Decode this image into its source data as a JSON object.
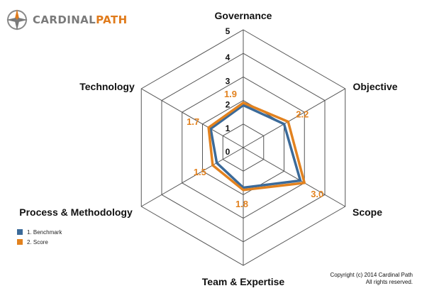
{
  "brand": {
    "name_part1": "CARDINAL",
    "name_part2": "PATH",
    "accent": "#e07b1c",
    "icon": "compass-icon"
  },
  "chart_data": {
    "type": "radar",
    "axes": [
      "Governance",
      "Objective",
      "Scope",
      "Team & Expertise",
      "Process & Methodology",
      "Technology"
    ],
    "scale_ticks": [
      "0",
      "1",
      "2",
      "3",
      "4",
      "5"
    ],
    "range": [
      0,
      5
    ],
    "series": [
      {
        "name": "1. Benchmark",
        "color": "#3b6a99",
        "values": [
          1.8,
          2.0,
          2.8,
          1.7,
          1.3,
          1.6
        ]
      },
      {
        "name": "2. Score",
        "color": "#e2821f",
        "values": [
          1.9,
          2.2,
          3.0,
          1.8,
          1.5,
          1.7
        ]
      }
    ],
    "score_labels": [
      "1.9",
      "2.2",
      "3.0",
      "1.8",
      "1.5",
      "1.7"
    ],
    "grid": true,
    "legend": "bottom-left"
  },
  "legend": {
    "items": [
      {
        "label": "1. Benchmark",
        "color": "#3b6a99"
      },
      {
        "label": "2. Score",
        "color": "#e2821f"
      }
    ]
  },
  "copyright": {
    "line1": "Copyright (c) 2014 Cardinal Path",
    "line2": "All rights reserved."
  }
}
